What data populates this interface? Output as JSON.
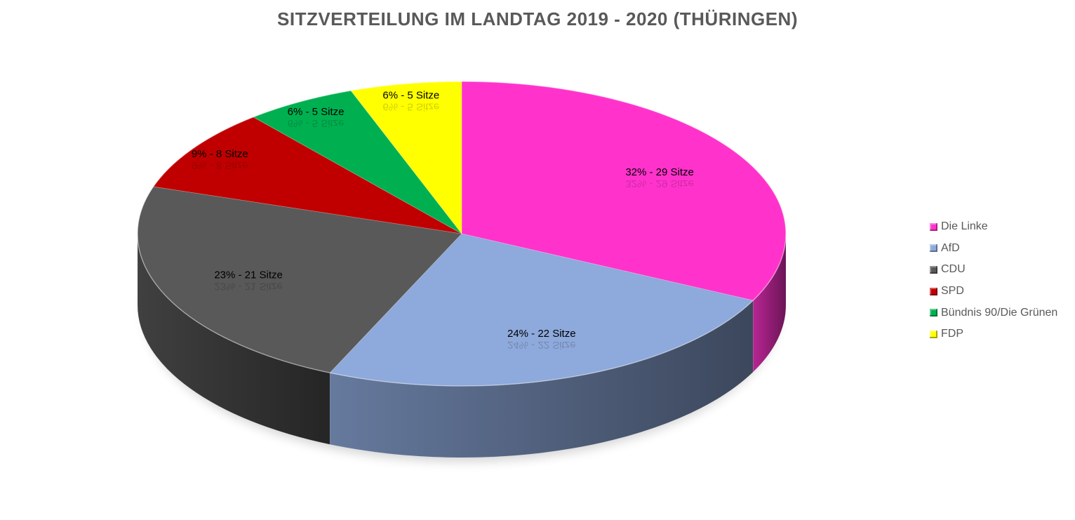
{
  "chart_data": {
    "type": "pie",
    "title": "SITZVERTEILUNG IM LANDTAG 2019 - 2020 (THÜRINGEN)",
    "categories": [
      "Die Linke",
      "AfD",
      "CDU",
      "SPD",
      "Bündnis 90/Die Grünen",
      "FDP"
    ],
    "values": [
      29,
      22,
      21,
      8,
      5,
      5
    ],
    "data_labels": [
      "32% - 29 Sitze",
      "24% - 22 Sitze",
      "23% - 21 Sitze",
      "9% - 8 Sitze",
      "6% - 5 Sitze",
      "6% - 5 Sitze"
    ],
    "colors": [
      "#FF33CC",
      "#8EA9DB",
      "#595959",
      "#C00000",
      "#00B050",
      "#FFFF00"
    ],
    "legend_position": "right",
    "style": "3d"
  }
}
